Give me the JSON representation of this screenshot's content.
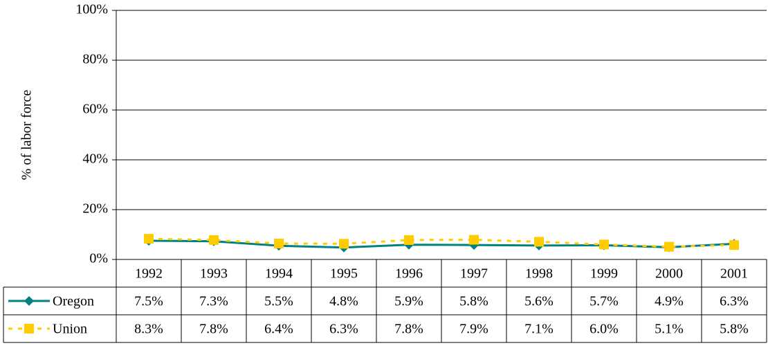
{
  "chart_data": {
    "type": "line",
    "y_label": "% of labor force",
    "categories": [
      "1992",
      "1993",
      "1994",
      "1995",
      "1996",
      "1997",
      "1998",
      "1999",
      "2000",
      "2001"
    ],
    "series": [
      {
        "name": "Oregon",
        "color": "#008080",
        "marker": "diamond",
        "dash": false,
        "values": [
          7.5,
          7.3,
          5.5,
          4.8,
          5.9,
          5.8,
          5.6,
          5.7,
          4.9,
          6.3
        ],
        "value_labels": [
          "7.5%",
          "7.3%",
          "5.5%",
          "4.8%",
          "5.9%",
          "5.8%",
          "5.6%",
          "5.7%",
          "4.9%",
          "6.3%"
        ]
      },
      {
        "name": "Union",
        "color": "#ffcc00",
        "marker": "square",
        "dash": true,
        "values": [
          8.3,
          7.8,
          6.4,
          6.3,
          7.8,
          7.9,
          7.1,
          6.0,
          5.1,
          5.8
        ],
        "value_labels": [
          "8.3%",
          "7.8%",
          "6.4%",
          "6.3%",
          "7.8%",
          "7.9%",
          "7.1%",
          "6.0%",
          "5.1%",
          "5.8%"
        ]
      }
    ],
    "ylim": [
      0,
      100
    ],
    "yticks": [
      {
        "value": 0,
        "label": "0%"
      },
      {
        "value": 20,
        "label": "20%"
      },
      {
        "value": 40,
        "label": "40%"
      },
      {
        "value": 60,
        "label": "60%"
      },
      {
        "value": 80,
        "label": "80%"
      },
      {
        "value": 100,
        "label": "100%"
      }
    ],
    "grid": true
  }
}
